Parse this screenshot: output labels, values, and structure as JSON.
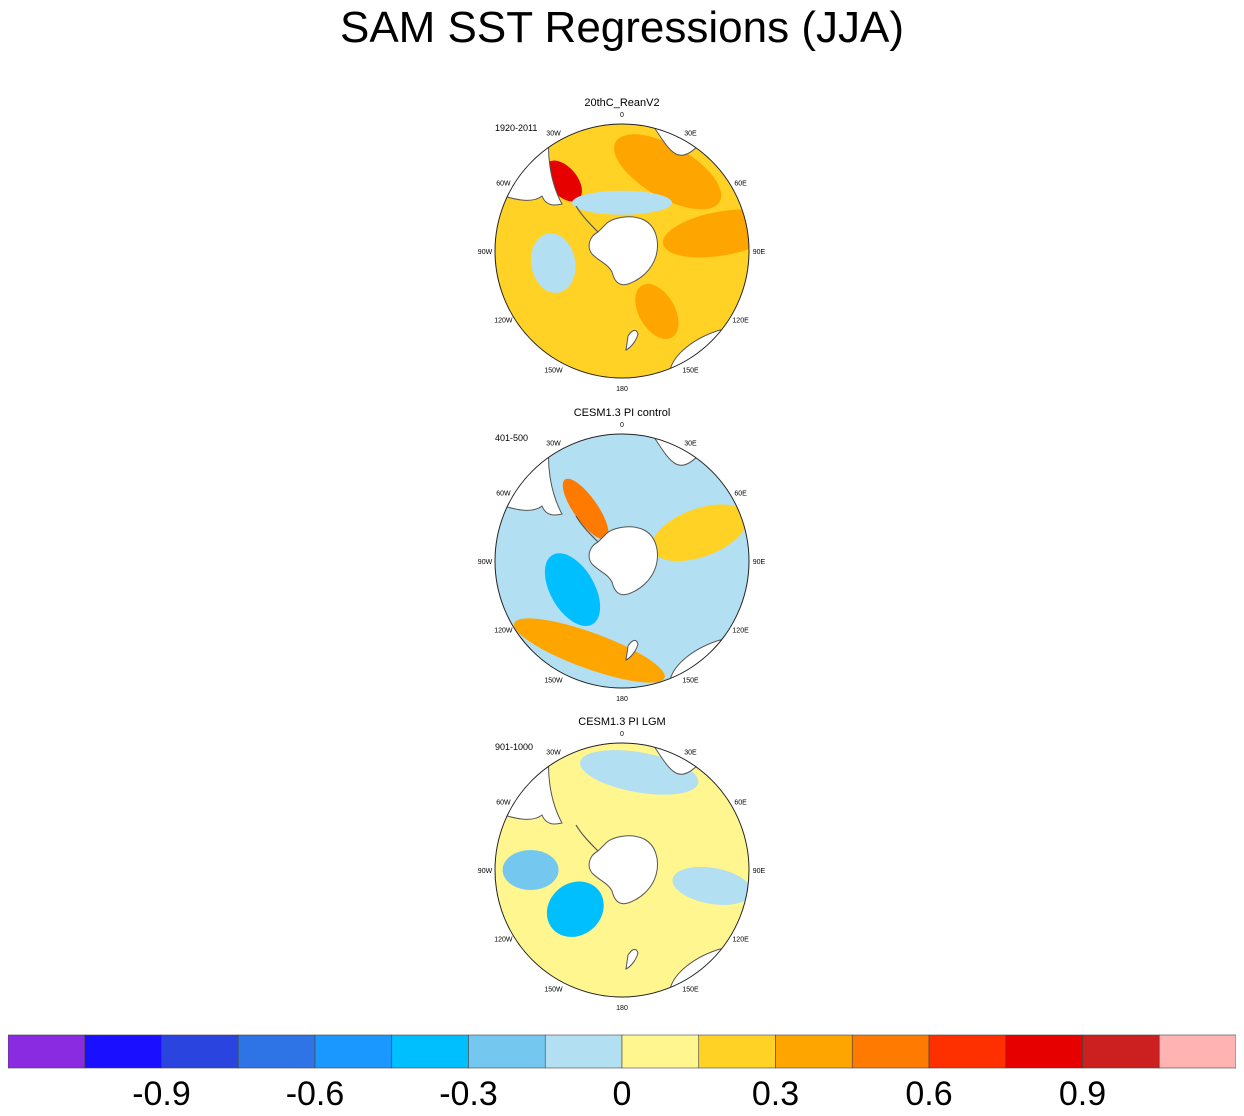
{
  "title": "SAM SST Regressions (JJA)",
  "chart_data": [
    {
      "type": "heatmap",
      "projection": "south-polar-stereographic",
      "title": "20thC_ReanV2",
      "period": "1920-2011",
      "lon_labels": [
        "0",
        "30E",
        "60E",
        "90E",
        "120E",
        "150E",
        "180",
        "150W",
        "120W",
        "90W",
        "60W",
        "30W"
      ],
      "dominant_value": 0.15,
      "features": [
        {
          "sector": "Atlantic 30W-60E, 35-55S",
          "value": 0.3
        },
        {
          "sector": "Drake Passage / S. America coast",
          "value": 0.75
        },
        {
          "sector": "Indian Ocean 60E-120E",
          "value": 0.3
        },
        {
          "sector": "Circumpolar 60S ring",
          "value": -0.1
        },
        {
          "sector": "E. Pacific 90W-120W mid-lat",
          "value": -0.1
        },
        {
          "sector": "S. Pacific south of NZ",
          "value": 0.3
        }
      ]
    },
    {
      "type": "heatmap",
      "projection": "south-polar-stereographic",
      "title": "CESM1.3 PI control",
      "period": "401-500",
      "lon_labels": [
        "0",
        "30E",
        "60E",
        "90E",
        "120E",
        "150E",
        "180",
        "150W",
        "120W",
        "90W",
        "60W",
        "30W"
      ],
      "dominant_value": -0.1,
      "features": [
        {
          "sector": "Antarctic Peninsula / Drake Passage",
          "value": 0.45
        },
        {
          "sector": "Amundsen-Bellingshausen Sea",
          "value": -0.35
        },
        {
          "sector": "Pacific 50S band 150W-150E",
          "value": 0.3
        },
        {
          "sector": "Indian Ocean 60S",
          "value": 0.15
        }
      ]
    },
    {
      "type": "heatmap",
      "projection": "south-polar-stereographic",
      "title": "CESM1.3 PI LGM",
      "period": "901-1000",
      "lon_labels": [
        "0",
        "30E",
        "60E",
        "90E",
        "120E",
        "150E",
        "180",
        "150W",
        "120W",
        "90W",
        "60W",
        "30W"
      ],
      "dominant_value": 0.1,
      "features": [
        {
          "sector": "Atlantic subtropics",
          "value": -0.1
        },
        {
          "sector": "Amundsen Sea",
          "value": -0.35
        },
        {
          "sector": "Indian Ocean 90E-120E",
          "value": -0.1
        },
        {
          "sector": "SE Pacific 90W-120W mid-lat",
          "value": -0.2
        }
      ]
    }
  ],
  "colorbar": {
    "colors": [
      "#8a2be2",
      "#1a0fff",
      "#2a44e0",
      "#2f74e6",
      "#1a98ff",
      "#00bfff",
      "#74c8f0",
      "#b2dff2",
      "#fff68f",
      "#ffd225",
      "#ffa500",
      "#ff7a00",
      "#ff3000",
      "#e60000",
      "#cc2020",
      "#ffb3b3"
    ],
    "labels": [
      "-0.9",
      "-0.6",
      "-0.3",
      "0",
      "0.3",
      "0.6",
      "0.9"
    ],
    "label_values": [
      -0.9,
      -0.6,
      -0.3,
      0,
      0.3,
      0.6,
      0.9
    ],
    "min": -1.2,
    "max": 1.2
  }
}
